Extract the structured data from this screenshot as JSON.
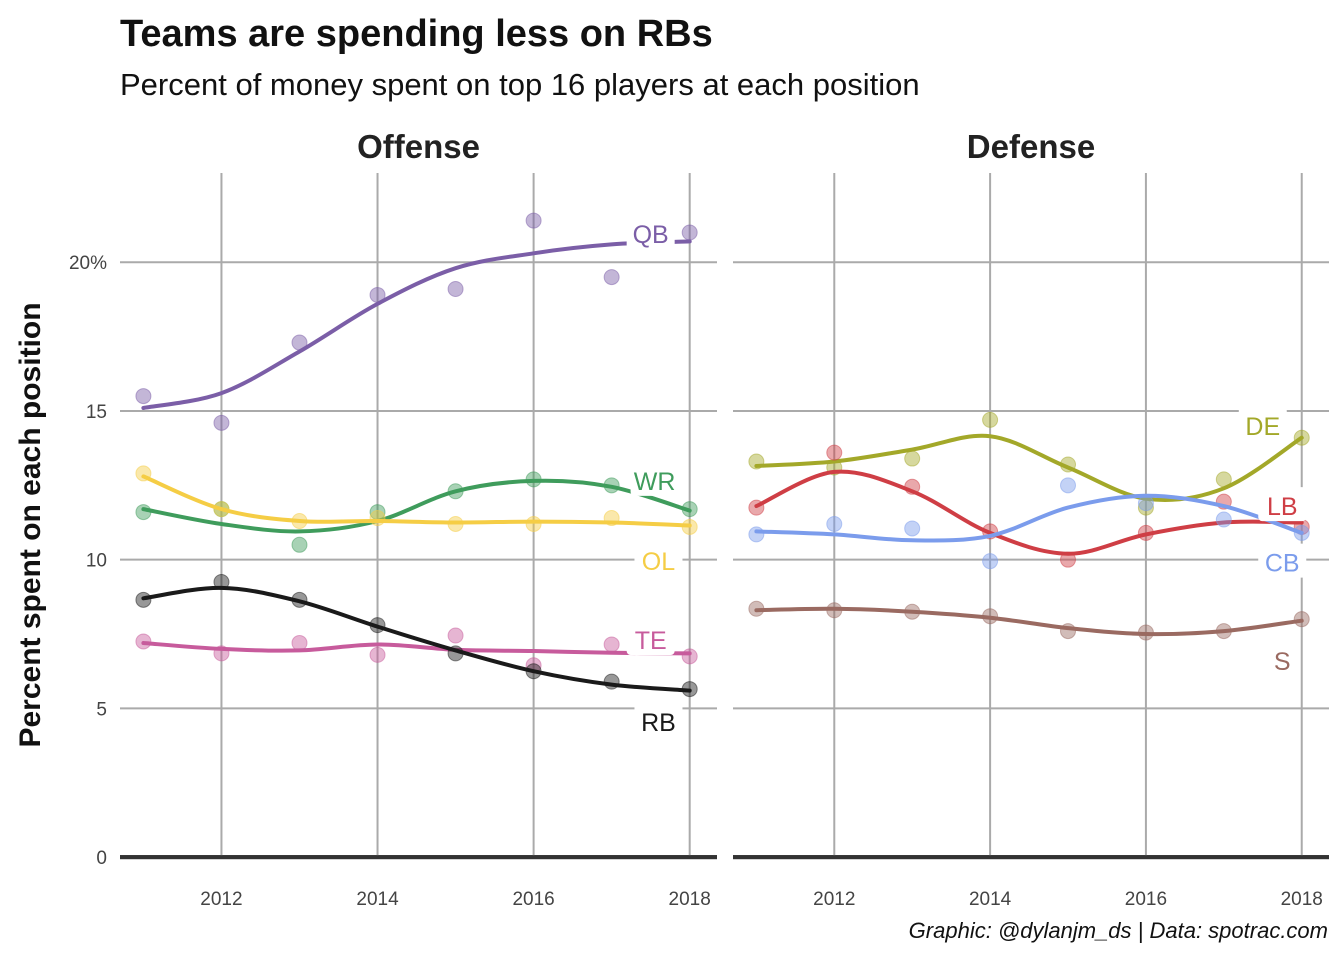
{
  "chart_data": {
    "type": "line",
    "title": "Teams are spending less on RBs",
    "subtitle": "Percent of money spent on top 16 players at each position",
    "ylabel": "Percent spent on each position",
    "caption": "Graphic: @dylanjm_ds | Data: spotrac.com",
    "xlim": [
      2010.7,
      2018.35
    ],
    "ylim": [
      -0.5,
      23
    ],
    "x_ticks": [
      "2012",
      "2014",
      "2016",
      "2018"
    ],
    "y_ticks": [
      "0",
      "5",
      "10",
      "15",
      "20%"
    ],
    "grid": true,
    "x": [
      2011,
      2012,
      2013,
      2014,
      2015,
      2016,
      2017,
      2018
    ],
    "panels": [
      {
        "name": "Offense",
        "series": [
          {
            "name": "QB",
            "color": "#7b5ea7",
            "values": [
              15.5,
              14.6,
              17.3,
              18.9,
              19.1,
              21.4,
              19.5,
              21.0
            ],
            "smooth": [
              15.1,
              15.6,
              17.0,
              18.6,
              19.8,
              20.3,
              20.6,
              20.7
            ]
          },
          {
            "name": "WR",
            "color": "#3f9c5c",
            "values": [
              11.6,
              11.7,
              10.5,
              11.6,
              12.3,
              12.7,
              12.5,
              11.7
            ],
            "smooth": [
              11.7,
              11.2,
              10.95,
              11.3,
              12.3,
              12.65,
              12.45,
              11.65
            ]
          },
          {
            "name": "OL",
            "color": "#f5cd45",
            "values": [
              12.9,
              11.7,
              11.3,
              11.4,
              11.2,
              11.2,
              11.4,
              11.1
            ],
            "smooth": [
              12.8,
              11.7,
              11.3,
              11.3,
              11.25,
              11.28,
              11.25,
              11.15
            ]
          },
          {
            "name": "TE",
            "color": "#c75b9c",
            "values": [
              7.25,
              6.85,
              7.2,
              6.8,
              7.45,
              6.45,
              7.15,
              6.75
            ],
            "smooth": [
              7.2,
              7.0,
              6.95,
              7.15,
              6.97,
              6.93,
              6.87,
              6.85
            ]
          },
          {
            "name": "RB",
            "color": "#1a1a1a",
            "values": [
              8.65,
              9.25,
              8.65,
              7.8,
              6.85,
              6.25,
              5.9,
              5.65
            ],
            "smooth": [
              8.7,
              9.05,
              8.6,
              7.75,
              6.95,
              6.25,
              5.8,
              5.6
            ]
          }
        ]
      },
      {
        "name": "Defense",
        "series": [
          {
            "name": "DE",
            "color": "#a3a829",
            "values": [
              13.3,
              13.1,
              13.4,
              14.7,
              13.2,
              11.75,
              12.7,
              14.1
            ],
            "smooth": [
              13.15,
              13.3,
              13.7,
              14.15,
              13.1,
              12.05,
              12.4,
              14.1
            ]
          },
          {
            "name": "LB",
            "color": "#cf3e45",
            "values": [
              11.75,
              13.6,
              12.45,
              10.95,
              10.0,
              10.9,
              11.95,
              11.1
            ],
            "smooth": [
              11.8,
              12.95,
              12.3,
              10.9,
              10.2,
              10.85,
              11.25,
              11.25
            ]
          },
          {
            "name": "CB",
            "color": "#7b9cec",
            "values": [
              10.85,
              11.2,
              11.05,
              9.95,
              12.5,
              11.9,
              11.35,
              10.9
            ],
            "smooth": [
              10.95,
              10.85,
              10.65,
              10.8,
              11.75,
              12.15,
              11.8,
              10.9
            ]
          },
          {
            "name": "S",
            "color": "#9a6a61",
            "values": [
              8.35,
              8.3,
              8.25,
              8.1,
              7.6,
              7.55,
              7.6,
              8.0
            ],
            "smooth": [
              8.3,
              8.35,
              8.25,
              8.05,
              7.7,
              7.5,
              7.6,
              7.95
            ]
          }
        ]
      }
    ]
  }
}
